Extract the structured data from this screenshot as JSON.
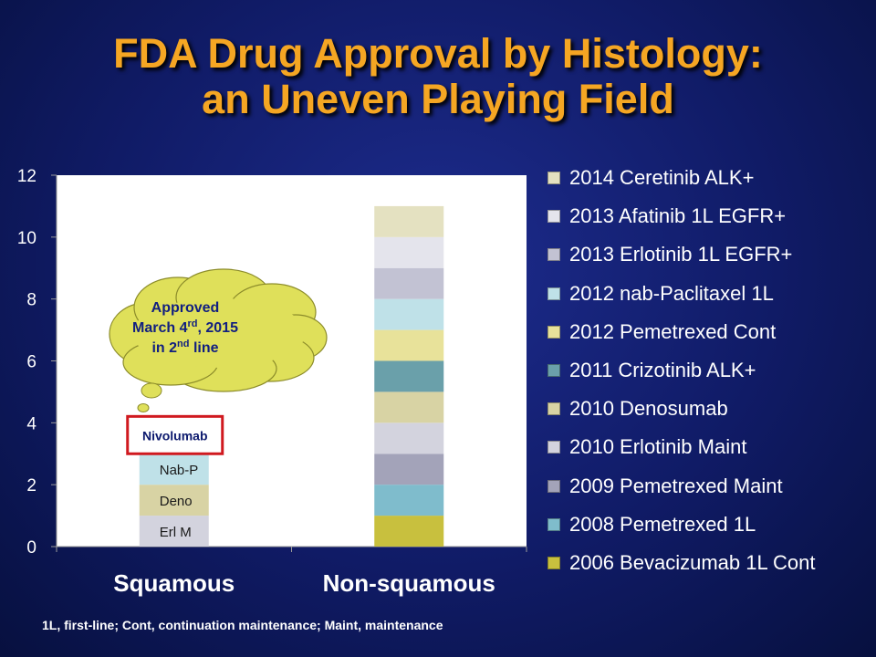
{
  "title_line1": "FDA Drug Approval by Histology:",
  "title_line2": "an Uneven Playing Field",
  "footnote": "1L, first-line; Cont, continuation maintenance; Maint, maintenance",
  "chart_data": {
    "type": "bar",
    "stacked": true,
    "categories": [
      "Squamous",
      "Non-squamous"
    ],
    "ylim": [
      0,
      12
    ],
    "yticks": [
      0,
      2,
      4,
      6,
      8,
      10,
      12
    ],
    "legend_position": "right",
    "series": [
      {
        "name": "2006 Bevacizumab 1L Cont",
        "color": "#c8c03e",
        "values": [
          0,
          1
        ]
      },
      {
        "name": "2008 Pemetrexed 1L",
        "color": "#7fbccc",
        "values": [
          0,
          1
        ]
      },
      {
        "name": "2009 Pemetrexed Maint",
        "color": "#a3a3b9",
        "values": [
          0,
          1
        ]
      },
      {
        "name": "2010 Erlotinib Maint",
        "color": "#d3d3de",
        "values": [
          1,
          1
        ]
      },
      {
        "name": "2010 Denosumab",
        "color": "#d8d3a4",
        "values": [
          1,
          1
        ]
      },
      {
        "name": "2011 Crizotinib ALK+",
        "color": "#6aa0aa",
        "values": [
          0,
          1
        ]
      },
      {
        "name": "2012 Pemetrexed Cont",
        "color": "#e8e29a",
        "values": [
          0,
          1
        ]
      },
      {
        "name": "2012 nab-Paclitaxel 1L",
        "color": "#bfe1e8",
        "values": [
          1,
          1
        ]
      },
      {
        "name": "2013 Erlotinib 1L EGFR+",
        "color": "#c2c2d3",
        "values": [
          0,
          1
        ]
      },
      {
        "name": "2013 Afatinib 1L EGFR+",
        "color": "#e4e4ec",
        "values": [
          0,
          1
        ]
      },
      {
        "name": "2014 Ceretinib ALK+",
        "color": "#e4e1c1",
        "values": [
          0,
          1
        ]
      }
    ],
    "squamous_segment_labels": [
      "Erl M",
      "Deno",
      "Nab-P"
    ],
    "highlight": {
      "label": "Nivolumab",
      "category": "Squamous",
      "value": 1,
      "border_color": "#d0191f"
    },
    "callout": {
      "line1": "Approved",
      "line2_pre": "March 4",
      "line2_sup": "rd",
      "line2_post": ", 2015",
      "line3_pre": "in 2",
      "line3_sup": "nd",
      "line3_post": " line",
      "fill": "#dfe05a"
    }
  }
}
